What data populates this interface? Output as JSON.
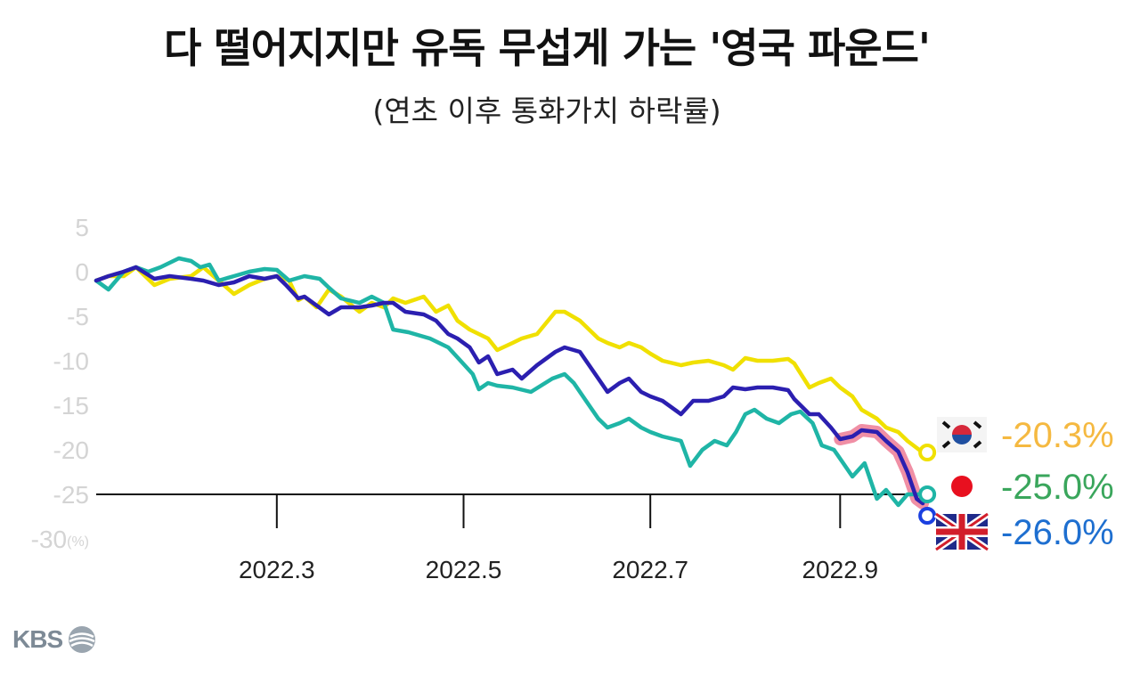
{
  "title": "다 떨어지지만 유독 무섭게 가는 '영국 파운드'",
  "subtitle": "(연초 이후 통화가치 하락률)",
  "logo": {
    "text": "KBS",
    "icon": "kbs-swirl-icon"
  },
  "chart_data": {
    "type": "line",
    "title": "다 떨어지지만 유독 무섭게 가는 '영국 파운드'",
    "subtitle": "(연초 이후 통화가치 하락률)",
    "y_unit": "(%)",
    "ylim": [
      -30,
      5
    ],
    "y_ticks": [
      "5",
      "0",
      "-5",
      "-10",
      "-15",
      "-20",
      "-25",
      "-30"
    ],
    "y_tick_values": [
      5,
      0,
      -5,
      -10,
      -15,
      -20,
      -25,
      -30
    ],
    "x_range": [
      "2022-01-01",
      "2022-09-30"
    ],
    "x_ticks": [
      {
        "label": "2022.3",
        "date": "2022-03-01"
      },
      {
        "label": "2022.5",
        "date": "2022-05-01"
      },
      {
        "label": "2022.7",
        "date": "2022-07-01"
      },
      {
        "label": "2022.9",
        "date": "2022-09-01"
      }
    ],
    "grid": false,
    "legend": "right",
    "series": [
      {
        "name": "KRW",
        "color": "#f0e000",
        "end_label": "-20.3%",
        "end_color": "#f5b941",
        "icon": "south-korea-flag-icon",
        "points": [
          [
            "2022-01-01",
            -1.0
          ],
          [
            "2022-01-05",
            -0.5
          ],
          [
            "2022-01-10",
            -0.5
          ],
          [
            "2022-01-14",
            0.5
          ],
          [
            "2022-01-20",
            -1.5
          ],
          [
            "2022-01-25",
            -0.8
          ],
          [
            "2022-02-01",
            -0.5
          ],
          [
            "2022-02-05",
            0.5
          ],
          [
            "2022-02-10",
            -1.0
          ],
          [
            "2022-02-15",
            -2.5
          ],
          [
            "2022-02-20",
            -1.5
          ],
          [
            "2022-02-25",
            -0.8
          ],
          [
            "2022-03-01",
            -0.5
          ],
          [
            "2022-03-05",
            -1.0
          ],
          [
            "2022-03-08",
            -3.2
          ],
          [
            "2022-03-10",
            -2.8
          ],
          [
            "2022-03-14",
            -4.0
          ],
          [
            "2022-03-18",
            -2.0
          ],
          [
            "2022-03-22",
            -2.8
          ],
          [
            "2022-03-28",
            -4.5
          ],
          [
            "2022-04-01",
            -3.5
          ],
          [
            "2022-04-05",
            -4.0
          ],
          [
            "2022-04-08",
            -3.0
          ],
          [
            "2022-04-12",
            -3.5
          ],
          [
            "2022-04-18",
            -2.8
          ],
          [
            "2022-04-22",
            -4.5
          ],
          [
            "2022-04-26",
            -3.8
          ],
          [
            "2022-04-29",
            -5.5
          ],
          [
            "2022-05-03",
            -6.5
          ],
          [
            "2022-05-09",
            -7.5
          ],
          [
            "2022-05-12",
            -8.8
          ],
          [
            "2022-05-17",
            -8.0
          ],
          [
            "2022-05-20",
            -7.5
          ],
          [
            "2022-05-25",
            -7.0
          ],
          [
            "2022-05-31",
            -4.5
          ],
          [
            "2022-06-03",
            -4.5
          ],
          [
            "2022-06-08",
            -5.5
          ],
          [
            "2022-06-14",
            -7.5
          ],
          [
            "2022-06-17",
            -8.0
          ],
          [
            "2022-06-21",
            -8.5
          ],
          [
            "2022-06-24",
            -8.0
          ],
          [
            "2022-06-28",
            -8.5
          ],
          [
            "2022-07-01",
            -9.2
          ],
          [
            "2022-07-05",
            -10.0
          ],
          [
            "2022-07-11",
            -10.5
          ],
          [
            "2022-07-15",
            -10.2
          ],
          [
            "2022-07-20",
            -10.0
          ],
          [
            "2022-07-25",
            -10.5
          ],
          [
            "2022-07-28",
            -11.0
          ],
          [
            "2022-08-01",
            -9.7
          ],
          [
            "2022-08-05",
            -10.0
          ],
          [
            "2022-08-10",
            -10.0
          ],
          [
            "2022-08-15",
            -9.8
          ],
          [
            "2022-08-17",
            -10.3
          ],
          [
            "2022-08-22",
            -13.0
          ],
          [
            "2022-08-25",
            -12.5
          ],
          [
            "2022-08-29",
            -12.0
          ],
          [
            "2022-09-01",
            -13.0
          ],
          [
            "2022-09-05",
            -14.0
          ],
          [
            "2022-09-08",
            -15.5
          ],
          [
            "2022-09-13",
            -16.5
          ],
          [
            "2022-09-16",
            -17.5
          ],
          [
            "2022-09-20",
            -18.0
          ],
          [
            "2022-09-23",
            -19.0
          ],
          [
            "2022-09-28",
            -20.3
          ]
        ]
      },
      {
        "name": "JPY",
        "color": "#1fb5a6",
        "end_label": "-25.0%",
        "end_color": "#3aa65c",
        "icon": "japan-flag-icon",
        "points": [
          [
            "2022-01-01",
            -1.0
          ],
          [
            "2022-01-05",
            -2.0
          ],
          [
            "2022-01-10",
            0.0
          ],
          [
            "2022-01-14",
            0.5
          ],
          [
            "2022-01-18",
            0.0
          ],
          [
            "2022-01-22",
            0.5
          ],
          [
            "2022-01-28",
            1.5
          ],
          [
            "2022-02-01",
            1.2
          ],
          [
            "2022-02-04",
            0.5
          ],
          [
            "2022-02-07",
            0.8
          ],
          [
            "2022-02-10",
            -1.0
          ],
          [
            "2022-02-15",
            -0.5
          ],
          [
            "2022-02-20",
            0.0
          ],
          [
            "2022-02-25",
            0.3
          ],
          [
            "2022-03-01",
            0.2
          ],
          [
            "2022-03-05",
            -1.0
          ],
          [
            "2022-03-10",
            -0.5
          ],
          [
            "2022-03-15",
            -0.8
          ],
          [
            "2022-03-18",
            -1.8
          ],
          [
            "2022-03-22",
            -3.0
          ],
          [
            "2022-03-28",
            -3.5
          ],
          [
            "2022-04-01",
            -2.8
          ],
          [
            "2022-04-05",
            -3.5
          ],
          [
            "2022-04-08",
            -6.5
          ],
          [
            "2022-04-13",
            -6.8
          ],
          [
            "2022-04-20",
            -7.5
          ],
          [
            "2022-04-26",
            -8.5
          ],
          [
            "2022-04-30",
            -10.0
          ],
          [
            "2022-05-04",
            -11.5
          ],
          [
            "2022-05-06",
            -13.2
          ],
          [
            "2022-05-09",
            -12.5
          ],
          [
            "2022-05-12",
            -12.8
          ],
          [
            "2022-05-17",
            -13.0
          ],
          [
            "2022-05-23",
            -13.5
          ],
          [
            "2022-05-30",
            -12.0
          ],
          [
            "2022-06-03",
            -11.5
          ],
          [
            "2022-06-06",
            -12.5
          ],
          [
            "2022-06-10",
            -14.5
          ],
          [
            "2022-06-14",
            -16.5
          ],
          [
            "2022-06-17",
            -17.5
          ],
          [
            "2022-06-21",
            -17.0
          ],
          [
            "2022-06-24",
            -16.5
          ],
          [
            "2022-06-28",
            -17.5
          ],
          [
            "2022-07-01",
            -18.0
          ],
          [
            "2022-07-05",
            -18.5
          ],
          [
            "2022-07-11",
            -19.0
          ],
          [
            "2022-07-14",
            -21.8
          ],
          [
            "2022-07-18",
            -20.0
          ],
          [
            "2022-07-22",
            -19.0
          ],
          [
            "2022-07-26",
            -19.5
          ],
          [
            "2022-07-29",
            -18.0
          ],
          [
            "2022-08-01",
            -16.0
          ],
          [
            "2022-08-04",
            -15.5
          ],
          [
            "2022-08-08",
            -16.5
          ],
          [
            "2022-08-12",
            -17.0
          ],
          [
            "2022-08-16",
            -16.0
          ],
          [
            "2022-08-19",
            -15.7
          ],
          [
            "2022-08-23",
            -17.0
          ],
          [
            "2022-08-26",
            -19.5
          ],
          [
            "2022-08-30",
            -20.0
          ],
          [
            "2022-09-02",
            -21.5
          ],
          [
            "2022-09-05",
            -23.0
          ],
          [
            "2022-09-09",
            -21.5
          ],
          [
            "2022-09-13",
            -25.5
          ],
          [
            "2022-09-16",
            -24.5
          ],
          [
            "2022-09-20",
            -26.2
          ],
          [
            "2022-09-23",
            -25.0
          ],
          [
            "2022-09-28",
            -25.0
          ]
        ]
      },
      {
        "name": "GBP",
        "color": "#2b1fb0",
        "end_label": "-26.0%",
        "end_color": "#1e6fd0",
        "icon": "uk-flag-icon",
        "highlight_from": "2022-09-01",
        "highlight_color": "#f08fa5",
        "points": [
          [
            "2022-01-01",
            -1.0
          ],
          [
            "2022-01-05",
            -0.5
          ],
          [
            "2022-01-10",
            0.0
          ],
          [
            "2022-01-14",
            0.5
          ],
          [
            "2022-01-20",
            -0.8
          ],
          [
            "2022-01-25",
            -0.5
          ],
          [
            "2022-02-01",
            -0.8
          ],
          [
            "2022-02-05",
            -1.0
          ],
          [
            "2022-02-10",
            -1.5
          ],
          [
            "2022-02-15",
            -1.2
          ],
          [
            "2022-02-20",
            -0.5
          ],
          [
            "2022-02-25",
            -0.8
          ],
          [
            "2022-03-01",
            -0.5
          ],
          [
            "2022-03-04",
            -1.5
          ],
          [
            "2022-03-08",
            -3.0
          ],
          [
            "2022-03-10",
            -2.8
          ],
          [
            "2022-03-14",
            -3.8
          ],
          [
            "2022-03-18",
            -4.8
          ],
          [
            "2022-03-22",
            -4.0
          ],
          [
            "2022-03-28",
            -4.0
          ],
          [
            "2022-04-01",
            -3.8
          ],
          [
            "2022-04-05",
            -3.5
          ],
          [
            "2022-04-08",
            -3.5
          ],
          [
            "2022-04-12",
            -4.5
          ],
          [
            "2022-04-18",
            -4.8
          ],
          [
            "2022-04-22",
            -5.5
          ],
          [
            "2022-04-26",
            -7.0
          ],
          [
            "2022-04-29",
            -7.5
          ],
          [
            "2022-05-03",
            -8.5
          ],
          [
            "2022-05-06",
            -10.2
          ],
          [
            "2022-05-09",
            -9.5
          ],
          [
            "2022-05-12",
            -11.5
          ],
          [
            "2022-05-17",
            -11.0
          ],
          [
            "2022-05-20",
            -12.0
          ],
          [
            "2022-05-25",
            -10.5
          ],
          [
            "2022-05-31",
            -9.0
          ],
          [
            "2022-06-03",
            -8.5
          ],
          [
            "2022-06-08",
            -9.0
          ],
          [
            "2022-06-14",
            -12.0
          ],
          [
            "2022-06-17",
            -13.5
          ],
          [
            "2022-06-21",
            -12.5
          ],
          [
            "2022-06-24",
            -12.0
          ],
          [
            "2022-06-28",
            -13.5
          ],
          [
            "2022-07-01",
            -14.0
          ],
          [
            "2022-07-05",
            -14.5
          ],
          [
            "2022-07-11",
            -16.0
          ],
          [
            "2022-07-15",
            -14.5
          ],
          [
            "2022-07-20",
            -14.5
          ],
          [
            "2022-07-25",
            -14.0
          ],
          [
            "2022-07-28",
            -13.0
          ],
          [
            "2022-08-01",
            -13.2
          ],
          [
            "2022-08-05",
            -13.0
          ],
          [
            "2022-08-10",
            -13.0
          ],
          [
            "2022-08-15",
            -13.3
          ],
          [
            "2022-08-17",
            -14.3
          ],
          [
            "2022-08-22",
            -16.0
          ],
          [
            "2022-08-25",
            -16.0
          ],
          [
            "2022-08-29",
            -17.5
          ],
          [
            "2022-09-01",
            -18.8
          ],
          [
            "2022-09-05",
            -18.5
          ],
          [
            "2022-09-08",
            -17.8
          ],
          [
            "2022-09-13",
            -18.0
          ],
          [
            "2022-09-16",
            -19.0
          ],
          [
            "2022-09-20",
            -20.2
          ],
          [
            "2022-09-23",
            -22.5
          ],
          [
            "2022-09-26",
            -25.5
          ],
          [
            "2022-09-28",
            -26.0
          ]
        ]
      }
    ]
  }
}
